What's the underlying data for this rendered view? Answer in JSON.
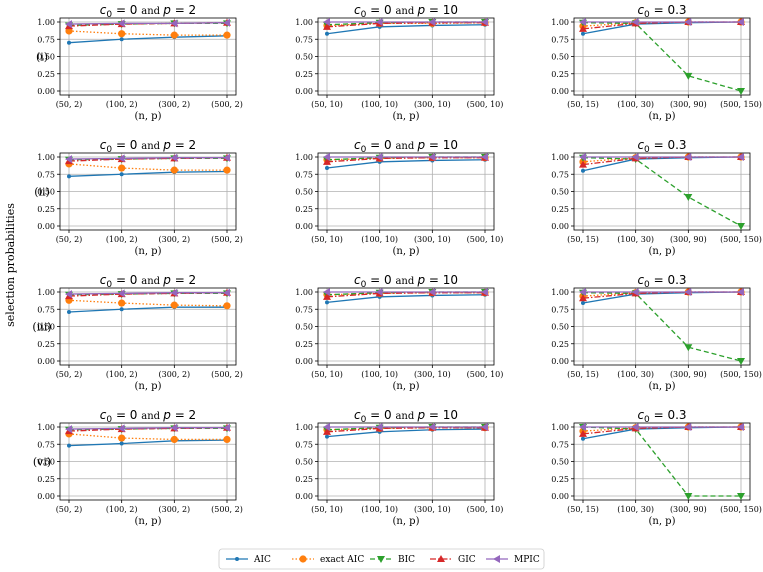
{
  "figure": {
    "ylabel": "selection probabilities",
    "row_labels": [
      "(i)",
      "(ii)",
      "(iii)",
      "(vi)"
    ],
    "xlabel": "(n, p)",
    "yticks": [
      "0.00",
      "0.25",
      "0.50",
      "0.75",
      "1.00"
    ]
  },
  "legend": [
    {
      "name": "AIC",
      "color": "#1f77b4",
      "marker": "circle-small",
      "dash": "solid"
    },
    {
      "name": "exact AIC",
      "color": "#ff7f0e",
      "marker": "circle",
      "dash": "dotted"
    },
    {
      "name": "BIC",
      "color": "#2ca02c",
      "marker": "triangle-down",
      "dash": "dashed"
    },
    {
      "name": "GIC",
      "color": "#d62728",
      "marker": "triangle-up",
      "dash": "dashdot"
    },
    {
      "name": "MPIC",
      "color": "#9467bd",
      "marker": "triangle-left",
      "dash": "solid"
    }
  ],
  "chart_data": [
    {
      "type": "line",
      "row": "(i)",
      "title": {
        "prefix": "c",
        "sub": "0",
        "mid": " = 0 and ",
        "var": "p",
        "suffix": " = 2"
      },
      "xticks": [
        "(50, 2)",
        "(100, 2)",
        "(300, 2)",
        "(500, 2)"
      ],
      "ylim": [
        0,
        1
      ],
      "series": [
        {
          "name": "AIC",
          "values": [
            0.7,
            0.75,
            0.78,
            0.8
          ]
        },
        {
          "name": "exact AIC",
          "values": [
            0.87,
            0.83,
            0.81,
            0.81
          ]
        },
        {
          "name": "BIC",
          "values": [
            0.95,
            0.97,
            0.98,
            0.98
          ]
        },
        {
          "name": "GIC",
          "values": [
            0.94,
            0.97,
            0.98,
            0.99
          ]
        },
        {
          "name": "MPIC",
          "values": [
            0.97,
            0.98,
            0.98,
            0.99
          ]
        }
      ]
    },
    {
      "type": "line",
      "row": "(i)",
      "title": {
        "prefix": "c",
        "sub": "0",
        "mid": " = 0 and ",
        "var": "p",
        "suffix": " = 10"
      },
      "xticks": [
        "(50, 10)",
        "(100, 10)",
        "(300, 10)",
        "(500, 10)"
      ],
      "ylim": [
        0,
        1
      ],
      "series": [
        {
          "name": "AIC",
          "values": [
            0.83,
            0.93,
            0.95,
            0.96
          ]
        },
        {
          "name": "exact AIC",
          "values": [
            0.95,
            0.98,
            0.98,
            0.99
          ]
        },
        {
          "name": "BIC",
          "values": [
            0.96,
            0.99,
            1.0,
            1.0
          ]
        },
        {
          "name": "GIC",
          "values": [
            0.93,
            0.98,
            0.99,
            0.99
          ]
        },
        {
          "name": "MPIC",
          "values": [
            1.0,
            1.0,
            1.0,
            1.0
          ]
        }
      ]
    },
    {
      "type": "line",
      "row": "(i)",
      "title": {
        "prefix": "c",
        "sub": "0",
        "mid": " = 0.3",
        "var": "",
        "suffix": ""
      },
      "xticks": [
        "(50, 15)",
        "(100, 30)",
        "(300, 90)",
        "(500, 150)"
      ],
      "ylim": [
        0,
        1
      ],
      "series": [
        {
          "name": "AIC",
          "values": [
            0.83,
            0.97,
            0.99,
            1.0
          ]
        },
        {
          "name": "exact AIC",
          "values": [
            0.94,
            0.99,
            1.0,
            1.0
          ]
        },
        {
          "name": "BIC",
          "values": [
            0.99,
            0.98,
            0.22,
            0.0
          ]
        },
        {
          "name": "GIC",
          "values": [
            0.9,
            0.98,
            1.0,
            1.0
          ]
        },
        {
          "name": "MPIC",
          "values": [
            1.0,
            1.0,
            1.0,
            1.0
          ]
        }
      ]
    },
    {
      "type": "line",
      "row": "(ii)",
      "title": {
        "prefix": "c",
        "sub": "0",
        "mid": " = 0 and ",
        "var": "p",
        "suffix": " = 2"
      },
      "xticks": [
        "(50, 2)",
        "(100, 2)",
        "(300, 2)",
        "(500, 2)"
      ],
      "ylim": [
        0,
        1
      ],
      "series": [
        {
          "name": "AIC",
          "values": [
            0.72,
            0.75,
            0.78,
            0.79
          ]
        },
        {
          "name": "exact AIC",
          "values": [
            0.9,
            0.84,
            0.81,
            0.81
          ]
        },
        {
          "name": "BIC",
          "values": [
            0.96,
            0.97,
            0.98,
            0.98
          ]
        },
        {
          "name": "GIC",
          "values": [
            0.94,
            0.97,
            0.98,
            0.99
          ]
        },
        {
          "name": "MPIC",
          "values": [
            0.97,
            0.98,
            0.99,
            0.99
          ]
        }
      ]
    },
    {
      "type": "line",
      "row": "(ii)",
      "title": {
        "prefix": "c",
        "sub": "0",
        "mid": " = 0 and ",
        "var": "p",
        "suffix": " = 10"
      },
      "xticks": [
        "(50, 10)",
        "(100, 10)",
        "(300, 10)",
        "(500, 10)"
      ],
      "ylim": [
        0,
        1
      ],
      "series": [
        {
          "name": "AIC",
          "values": [
            0.84,
            0.93,
            0.95,
            0.96
          ]
        },
        {
          "name": "exact AIC",
          "values": [
            0.96,
            0.98,
            0.99,
            0.99
          ]
        },
        {
          "name": "BIC",
          "values": [
            0.96,
            0.99,
            1.0,
            1.0
          ]
        },
        {
          "name": "GIC",
          "values": [
            0.93,
            0.98,
            0.99,
            0.99
          ]
        },
        {
          "name": "MPIC",
          "values": [
            1.0,
            1.0,
            1.0,
            1.0
          ]
        }
      ]
    },
    {
      "type": "line",
      "row": "(ii)",
      "title": {
        "prefix": "c",
        "sub": "0",
        "mid": " = 0.3",
        "var": "",
        "suffix": ""
      },
      "xticks": [
        "(50, 15)",
        "(100, 30)",
        "(300, 90)",
        "(500, 150)"
      ],
      "ylim": [
        0,
        1
      ],
      "series": [
        {
          "name": "AIC",
          "values": [
            0.8,
            0.97,
            0.99,
            1.0
          ]
        },
        {
          "name": "exact AIC",
          "values": [
            0.93,
            0.99,
            1.0,
            1.0
          ]
        },
        {
          "name": "BIC",
          "values": [
            0.99,
            0.97,
            0.42,
            0.0
          ]
        },
        {
          "name": "GIC",
          "values": [
            0.89,
            0.98,
            1.0,
            1.0
          ]
        },
        {
          "name": "MPIC",
          "values": [
            1.0,
            1.0,
            1.0,
            1.0
          ]
        }
      ]
    },
    {
      "type": "line",
      "row": "(iii)",
      "title": {
        "prefix": "c",
        "sub": "0",
        "mid": " = 0 and ",
        "var": "p",
        "suffix": " = 2"
      },
      "xticks": [
        "(50, 2)",
        "(100, 2)",
        "(300, 2)",
        "(500, 2)"
      ],
      "ylim": [
        0,
        1
      ],
      "series": [
        {
          "name": "AIC",
          "values": [
            0.71,
            0.75,
            0.78,
            0.78
          ]
        },
        {
          "name": "exact AIC",
          "values": [
            0.88,
            0.84,
            0.81,
            0.8
          ]
        },
        {
          "name": "BIC",
          "values": [
            0.96,
            0.97,
            0.98,
            0.98
          ]
        },
        {
          "name": "GIC",
          "values": [
            0.94,
            0.97,
            0.98,
            0.99
          ]
        },
        {
          "name": "MPIC",
          "values": [
            0.97,
            0.98,
            0.99,
            0.99
          ]
        }
      ]
    },
    {
      "type": "line",
      "row": "(iii)",
      "title": {
        "prefix": "c",
        "sub": "0",
        "mid": " = 0 and ",
        "var": "p",
        "suffix": " = 10"
      },
      "xticks": [
        "(50, 10)",
        "(100, 10)",
        "(300, 10)",
        "(500, 10)"
      ],
      "ylim": [
        0,
        1
      ],
      "series": [
        {
          "name": "AIC",
          "values": [
            0.85,
            0.93,
            0.95,
            0.96
          ]
        },
        {
          "name": "exact AIC",
          "values": [
            0.96,
            0.98,
            0.99,
            0.99
          ]
        },
        {
          "name": "BIC",
          "values": [
            0.96,
            0.99,
            1.0,
            1.0
          ]
        },
        {
          "name": "GIC",
          "values": [
            0.93,
            0.98,
            0.99,
            0.99
          ]
        },
        {
          "name": "MPIC",
          "values": [
            1.0,
            1.0,
            1.0,
            1.0
          ]
        }
      ]
    },
    {
      "type": "line",
      "row": "(iii)",
      "title": {
        "prefix": "c",
        "sub": "0",
        "mid": " = 0.3",
        "var": "",
        "suffix": ""
      },
      "xticks": [
        "(50, 15)",
        "(100, 30)",
        "(300, 90)",
        "(500, 150)"
      ],
      "ylim": [
        0,
        1
      ],
      "series": [
        {
          "name": "AIC",
          "values": [
            0.84,
            0.97,
            0.99,
            1.0
          ]
        },
        {
          "name": "exact AIC",
          "values": [
            0.94,
            0.99,
            1.0,
            1.0
          ]
        },
        {
          "name": "BIC",
          "values": [
            0.99,
            0.98,
            0.2,
            0.0
          ]
        },
        {
          "name": "GIC",
          "values": [
            0.91,
            0.98,
            1.0,
            1.0
          ]
        },
        {
          "name": "MPIC",
          "values": [
            1.0,
            1.0,
            1.0,
            1.0
          ]
        }
      ]
    },
    {
      "type": "line",
      "row": "(vi)",
      "title": {
        "prefix": "c",
        "sub": "0",
        "mid": " = 0 and ",
        "var": "p",
        "suffix": " = 2"
      },
      "xticks": [
        "(50, 2)",
        "(100, 2)",
        "(300, 2)",
        "(500, 2)"
      ],
      "ylim": [
        0,
        1
      ],
      "series": [
        {
          "name": "AIC",
          "values": [
            0.73,
            0.76,
            0.8,
            0.81
          ]
        },
        {
          "name": "exact AIC",
          "values": [
            0.9,
            0.84,
            0.82,
            0.82
          ]
        },
        {
          "name": "BIC",
          "values": [
            0.96,
            0.97,
            0.98,
            0.98
          ]
        },
        {
          "name": "GIC",
          "values": [
            0.94,
            0.97,
            0.98,
            0.99
          ]
        },
        {
          "name": "MPIC",
          "values": [
            0.97,
            0.98,
            0.99,
            0.99
          ]
        }
      ]
    },
    {
      "type": "line",
      "row": "(vi)",
      "title": {
        "prefix": "c",
        "sub": "0",
        "mid": " = 0 and ",
        "var": "p",
        "suffix": " = 10"
      },
      "xticks": [
        "(50, 10)",
        "(100, 10)",
        "(300, 10)",
        "(500, 10)"
      ],
      "ylim": [
        0,
        1
      ],
      "series": [
        {
          "name": "AIC",
          "values": [
            0.86,
            0.93,
            0.96,
            0.97
          ]
        },
        {
          "name": "exact AIC",
          "values": [
            0.96,
            0.98,
            0.99,
            0.99
          ]
        },
        {
          "name": "BIC",
          "values": [
            0.96,
            0.99,
            1.0,
            1.0
          ]
        },
        {
          "name": "GIC",
          "values": [
            0.93,
            0.98,
            0.99,
            0.99
          ]
        },
        {
          "name": "MPIC",
          "values": [
            1.0,
            1.0,
            1.0,
            1.0
          ]
        }
      ]
    },
    {
      "type": "line",
      "row": "(vi)",
      "title": {
        "prefix": "c",
        "sub": "0",
        "mid": " = 0.3",
        "var": "",
        "suffix": ""
      },
      "xticks": [
        "(50, 15)",
        "(100, 30)",
        "(300, 90)",
        "(500, 150)"
      ],
      "ylim": [
        0,
        1
      ],
      "series": [
        {
          "name": "AIC",
          "values": [
            0.83,
            0.97,
            0.99,
            1.0
          ]
        },
        {
          "name": "exact AIC",
          "values": [
            0.94,
            0.99,
            1.0,
            1.0
          ]
        },
        {
          "name": "BIC",
          "values": [
            1.0,
            0.97,
            0.0,
            0.0
          ]
        },
        {
          "name": "GIC",
          "values": [
            0.9,
            0.98,
            1.0,
            1.0
          ]
        },
        {
          "name": "MPIC",
          "values": [
            1.0,
            1.0,
            1.0,
            1.0
          ]
        }
      ]
    }
  ]
}
